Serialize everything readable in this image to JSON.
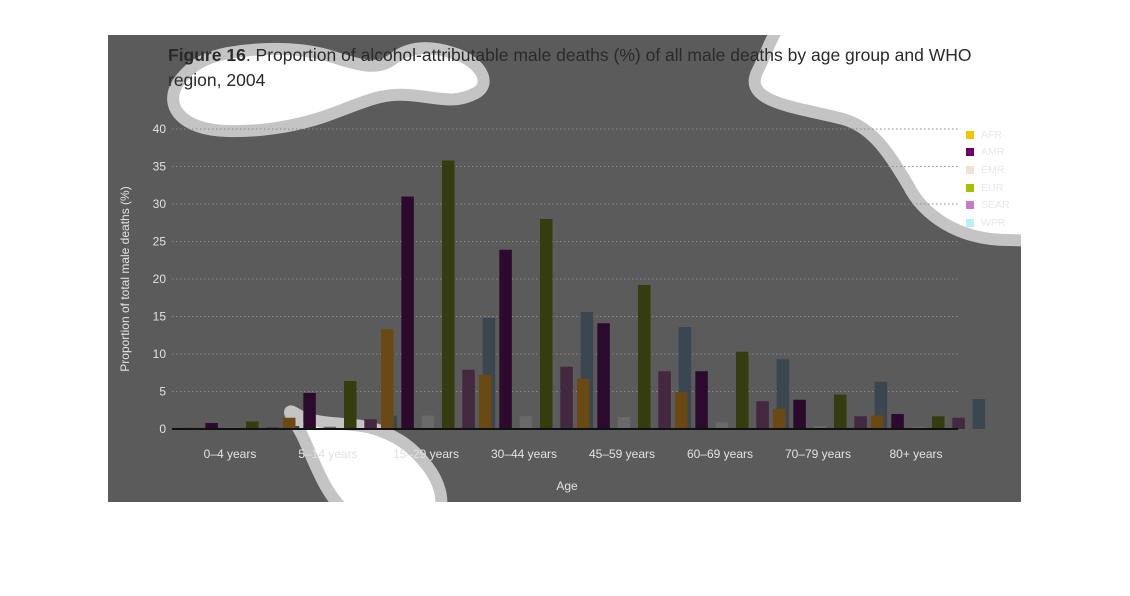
{
  "figure": {
    "label": "Figure 16",
    "caption": ". Proportion of alcohol-attributable male deaths (%) of all male deaths by age group and WHO region, 2004"
  },
  "chart_data": {
    "type": "bar",
    "title": "Figure 16. Proportion of alcohol-attributable male deaths (%) of all male deaths by age group and WHO region, 2004",
    "xlabel": "Age",
    "ylabel": "Proportion of total male deaths (%)",
    "ylim": [
      0,
      40
    ],
    "yticks": [
      0,
      5,
      10,
      15,
      20,
      25,
      30,
      35,
      40
    ],
    "grid": "horizontal dotted",
    "legend_position": "top-right",
    "categories": [
      "0–4 years",
      "5–14 years",
      "15–29 years",
      "30–44 years",
      "45–59 years",
      "60–69 years",
      "70–79 years",
      "80+ years"
    ],
    "series": [
      {
        "name": "AFR",
        "color": "#f5c400",
        "values": [
          0.2,
          1.5,
          13.3,
          7.2,
          6.7,
          4.9,
          2.7,
          1.8
        ]
      },
      {
        "name": "AMR",
        "color": "#6e006e",
        "values": [
          0.8,
          4.8,
          31.0,
          23.9,
          14.1,
          7.7,
          3.9,
          2.0
        ]
      },
      {
        "name": "EMR",
        "color": "#f5e0d8",
        "values": [
          0.2,
          0.3,
          1.8,
          1.7,
          1.6,
          0.9,
          0.4,
          0.3
        ]
      },
      {
        "name": "EUR",
        "color": "#a8c000",
        "values": [
          1.0,
          6.4,
          35.8,
          28.0,
          19.2,
          10.3,
          4.6,
          1.7
        ]
      },
      {
        "name": "SEAR",
        "color": "#c879c8",
        "values": [
          0.2,
          1.3,
          7.9,
          8.3,
          7.7,
          3.7,
          1.7,
          1.5
        ]
      },
      {
        "name": "WPR",
        "color": "#b8f0f8",
        "values": [
          0.4,
          1.8,
          14.8,
          15.6,
          13.6,
          9.3,
          6.3,
          4.0
        ]
      }
    ]
  }
}
